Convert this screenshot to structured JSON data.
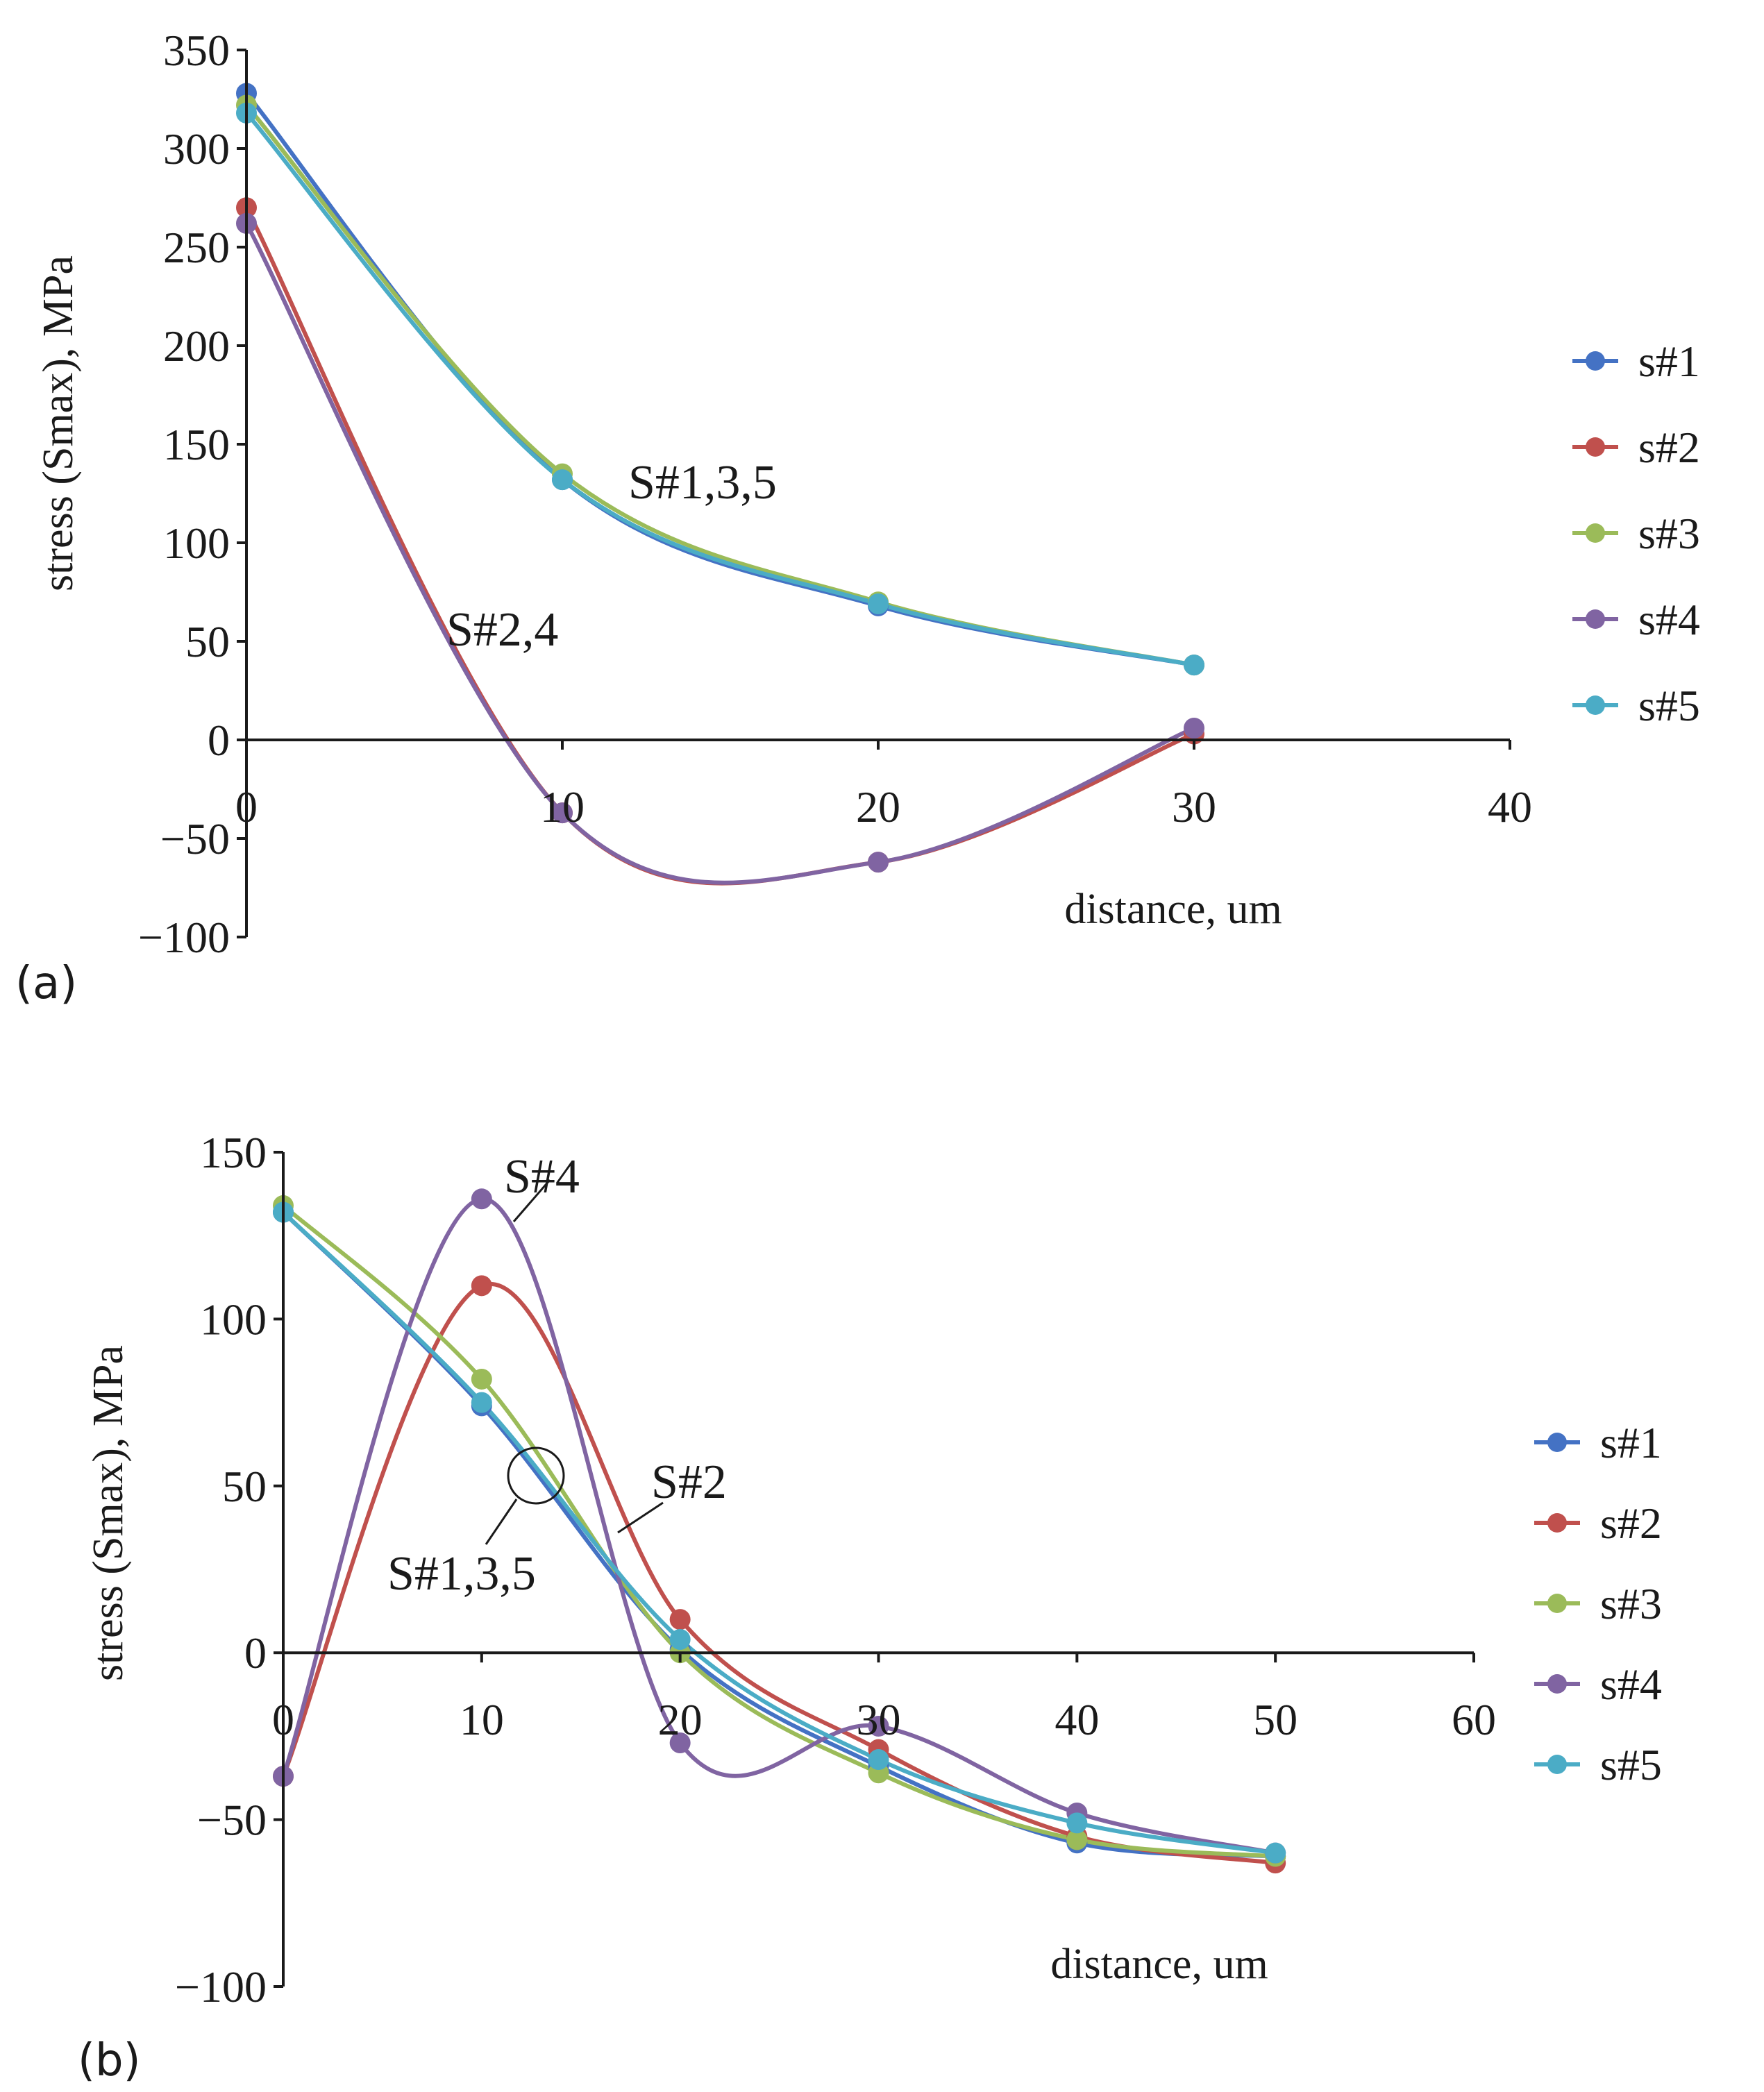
{
  "chart_data": [
    {
      "type": "line",
      "panel_label": "(a)",
      "xlabel": "distance, um",
      "ylabel": "stress (Smax), MPa",
      "xlim": [
        0,
        40
      ],
      "ylim": [
        -100,
        350
      ],
      "xticks": [
        0,
        10,
        20,
        30,
        40
      ],
      "yticks": [
        -100,
        -50,
        0,
        50,
        100,
        150,
        200,
        250,
        300,
        350
      ],
      "x": [
        0,
        10,
        20,
        30
      ],
      "series": [
        {
          "name": "s#1",
          "values": [
            328,
            132,
            68,
            38
          ],
          "color": "#4472C4"
        },
        {
          "name": "s#2",
          "values": [
            270,
            -37,
            -62,
            3
          ],
          "color": "#C0504D"
        },
        {
          "name": "s#3",
          "values": [
            322,
            135,
            70,
            38
          ],
          "color": "#9BBB59"
        },
        {
          "name": "s#4",
          "values": [
            262,
            -37,
            -62,
            6
          ],
          "color": "#8064A2"
        },
        {
          "name": "s#5",
          "values": [
            318,
            132,
            69,
            38
          ],
          "color": "#4BACC6"
        }
      ],
      "annotations": [
        {
          "text": "S#1,3,5"
        },
        {
          "text": "S#2,4"
        }
      ],
      "legend": "right"
    },
    {
      "type": "line",
      "panel_label": "(b)",
      "xlabel": "distance, um",
      "ylabel": "stress (Smax), MPa",
      "xlim": [
        0,
        60
      ],
      "ylim": [
        -100,
        150
      ],
      "xticks": [
        0,
        10,
        20,
        30,
        40,
        50,
        60
      ],
      "yticks": [
        -100,
        -50,
        0,
        50,
        100,
        150
      ],
      "x": [
        0,
        10,
        20,
        30,
        40,
        50
      ],
      "series": [
        {
          "name": "s#1",
          "values": [
            132,
            74,
            1,
            -34,
            -57,
            -61
          ],
          "color": "#4472C4"
        },
        {
          "name": "s#2",
          "values": [
            -37,
            110,
            10,
            -29,
            -55,
            -63
          ],
          "color": "#C0504D"
        },
        {
          "name": "s#3",
          "values": [
            134,
            82,
            0,
            -36,
            -56,
            -61
          ],
          "color": "#9BBB59"
        },
        {
          "name": "s#4",
          "values": [
            -37,
            136,
            -27,
            -22,
            -48,
            -60
          ],
          "color": "#8064A2"
        },
        {
          "name": "s#5",
          "values": [
            132,
            75,
            4,
            -32,
            -51,
            -60
          ],
          "color": "#4BACC6"
        }
      ],
      "annotations": [
        {
          "text": "S#4"
        },
        {
          "text": "S#2"
        },
        {
          "text": "S#1,3,5"
        }
      ],
      "legend": "right"
    }
  ]
}
